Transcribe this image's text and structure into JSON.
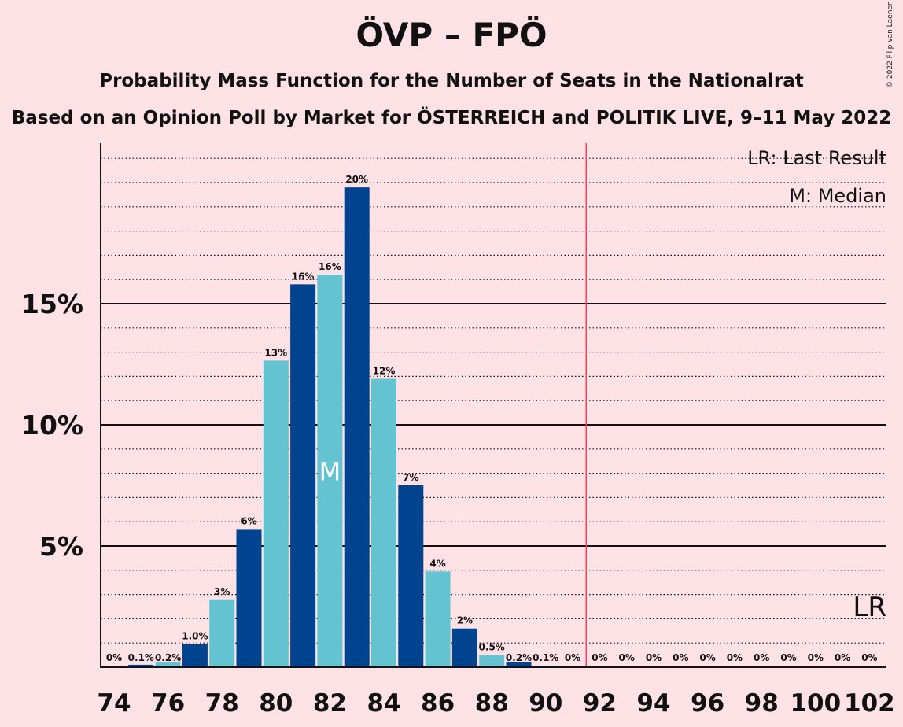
{
  "title": "ÖVP – FPÖ",
  "subtitle": "Probability Mass Function for the Number of Seats in the Nationalrat",
  "source": "Based on an Opinion Poll by Market for ÖSTERREICH and POLITIK LIVE, 9–11 May 2022",
  "copyright": "© 2022 Filip van Laenen",
  "legend": {
    "last_result": "LR: Last Result",
    "median": "M: Median"
  },
  "markers": {
    "median_label": "M",
    "last_result_label": "LR"
  },
  "colors": {
    "background": "#FFE2E6",
    "bar_dark": "#00438F",
    "bar_light": "#63C3D0",
    "majority_line": "#E8455A"
  },
  "chart_data": {
    "type": "bar",
    "xlabel": "",
    "ylabel": "",
    "x": [
      74,
      75,
      76,
      77,
      78,
      79,
      80,
      81,
      82,
      83,
      84,
      85,
      86,
      87,
      88,
      89,
      90,
      91,
      92,
      93,
      94,
      95,
      96,
      97,
      98,
      99,
      100,
      101,
      102
    ],
    "values": [
      0,
      0.1,
      0.2,
      0.95,
      2.8,
      5.7,
      12.65,
      15.8,
      16.2,
      19.8,
      11.9,
      7.5,
      3.95,
      1.6,
      0.5,
      0.2,
      0.05,
      0.01,
      0,
      0,
      0,
      0,
      0,
      0,
      0,
      0,
      0,
      0,
      0
    ],
    "labels": [
      "0%",
      "0.1%",
      "0.2%",
      "1.0%",
      "3%",
      "6%",
      "13%",
      "16%",
      "16%",
      "20%",
      "12%",
      "7%",
      "4%",
      "2%",
      "0.5%",
      "0.2%",
      "0.1%",
      "0%",
      "0%",
      "0%",
      "0%",
      "0%",
      "0%",
      "0%",
      "0%",
      "0%",
      "0%",
      "0%",
      "0%"
    ],
    "x_ticks": [
      74,
      76,
      78,
      80,
      82,
      84,
      86,
      88,
      90,
      92,
      94,
      96,
      98,
      100,
      102
    ],
    "y_ticks": [
      5,
      10,
      15
    ],
    "y_tick_labels": [
      "5%",
      "10%",
      "15%"
    ],
    "ylim": [
      0,
      21.7
    ],
    "majority_line_x": 91.5,
    "median_x": 82,
    "last_result_x": 102,
    "grid": "dotted minor every 1%, solid major every 5%"
  }
}
